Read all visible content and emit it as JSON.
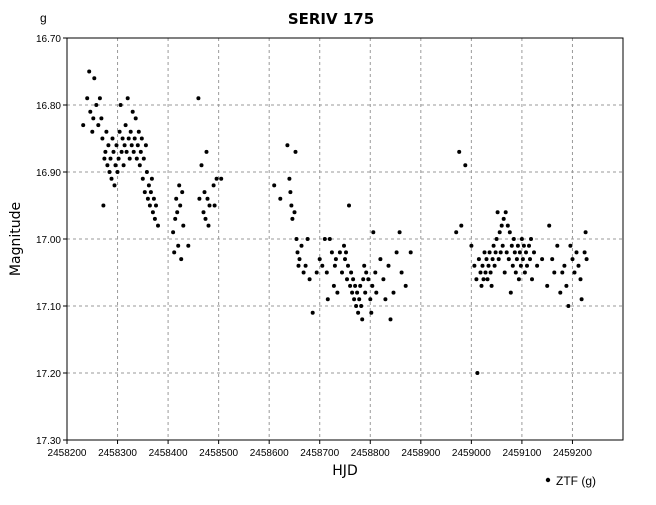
{
  "chart_data": {
    "type": "scatter",
    "title": "SERIV 175",
    "band": "g",
    "xlabel": "HJD",
    "ylabel": "Magnitude",
    "xlim": [
      2458200,
      2459300
    ],
    "ylim": [
      16.7,
      17.3
    ],
    "y_inverted": true,
    "grid": true,
    "legend_position": "bottom-right",
    "x_ticks": [
      2458200,
      2458300,
      2458400,
      2458500,
      2458600,
      2458700,
      2458800,
      2458900,
      2459000,
      2459100,
      2459200
    ],
    "y_ticks": [
      16.7,
      16.8,
      16.9,
      17.0,
      17.1,
      17.2,
      17.3
    ],
    "x_tick_labels": [
      "2458200",
      "2458300",
      "2458400",
      "2458500",
      "2458600",
      "2458700",
      "2458800",
      "2458900",
      "2459000",
      "2459100",
      "2459200"
    ],
    "y_tick_labels": [
      "16.70",
      "16.80",
      "16.90",
      "17.00",
      "17.10",
      "17.20",
      "17.30"
    ],
    "series": [
      {
        "name": "ZTF (g)",
        "color": "#000000",
        "points": [
          [
            2458232,
            16.83
          ],
          [
            2458240,
            16.79
          ],
          [
            2458244,
            16.75
          ],
          [
            2458246,
            16.81
          ],
          [
            2458250,
            16.84
          ],
          [
            2458252,
            16.82
          ],
          [
            2458254,
            16.76
          ],
          [
            2458258,
            16.8
          ],
          [
            2458262,
            16.83
          ],
          [
            2458265,
            16.79
          ],
          [
            2458268,
            16.82
          ],
          [
            2458270,
            16.85
          ],
          [
            2458272,
            16.95
          ],
          [
            2458274,
            16.88
          ],
          [
            2458276,
            16.87
          ],
          [
            2458278,
            16.84
          ],
          [
            2458280,
            16.89
          ],
          [
            2458282,
            16.86
          ],
          [
            2458284,
            16.9
          ],
          [
            2458286,
            16.88
          ],
          [
            2458288,
            16.91
          ],
          [
            2458290,
            16.85
          ],
          [
            2458292,
            16.87
          ],
          [
            2458294,
            16.92
          ],
          [
            2458296,
            16.89
          ],
          [
            2458298,
            16.86
          ],
          [
            2458300,
            16.9
          ],
          [
            2458302,
            16.88
          ],
          [
            2458304,
            16.84
          ],
          [
            2458306,
            16.8
          ],
          [
            2458308,
            16.87
          ],
          [
            2458310,
            16.85
          ],
          [
            2458312,
            16.89
          ],
          [
            2458314,
            16.86
          ],
          [
            2458316,
            16.83
          ],
          [
            2458318,
            16.87
          ],
          [
            2458320,
            16.79
          ],
          [
            2458322,
            16.85
          ],
          [
            2458324,
            16.88
          ],
          [
            2458326,
            16.84
          ],
          [
            2458328,
            16.86
          ],
          [
            2458330,
            16.81
          ],
          [
            2458332,
            16.87
          ],
          [
            2458334,
            16.85
          ],
          [
            2458336,
            16.82
          ],
          [
            2458338,
            16.88
          ],
          [
            2458340,
            16.86
          ],
          [
            2458342,
            16.84
          ],
          [
            2458344,
            16.89
          ],
          [
            2458346,
            16.87
          ],
          [
            2458348,
            16.85
          ],
          [
            2458350,
            16.91
          ],
          [
            2458352,
            16.88
          ],
          [
            2458354,
            16.93
          ],
          [
            2458356,
            16.86
          ],
          [
            2458358,
            16.9
          ],
          [
            2458360,
            16.94
          ],
          [
            2458362,
            16.92
          ],
          [
            2458364,
            16.95
          ],
          [
            2458366,
            16.93
          ],
          [
            2458368,
            16.91
          ],
          [
            2458370,
            16.96
          ],
          [
            2458372,
            16.94
          ],
          [
            2458374,
            16.97
          ],
          [
            2458376,
            16.95
          ],
          [
            2458380,
            16.98
          ],
          [
            2458410,
            16.99
          ],
          [
            2458412,
            17.02
          ],
          [
            2458414,
            16.97
          ],
          [
            2458416,
            16.94
          ],
          [
            2458418,
            16.96
          ],
          [
            2458420,
            17.01
          ],
          [
            2458422,
            16.92
          ],
          [
            2458424,
            16.95
          ],
          [
            2458426,
            17.03
          ],
          [
            2458428,
            16.93
          ],
          [
            2458430,
            16.98
          ],
          [
            2458440,
            17.01
          ],
          [
            2458460,
            16.79
          ],
          [
            2458462,
            16.94
          ],
          [
            2458466,
            16.89
          ],
          [
            2458470,
            16.96
          ],
          [
            2458472,
            16.93
          ],
          [
            2458474,
            16.97
          ],
          [
            2458476,
            16.87
          ],
          [
            2458478,
            16.94
          ],
          [
            2458480,
            16.98
          ],
          [
            2458482,
            16.95
          ],
          [
            2458490,
            16.92
          ],
          [
            2458492,
            16.95
          ],
          [
            2458496,
            16.91
          ],
          [
            2458505,
            16.91
          ],
          [
            2458610,
            16.92
          ],
          [
            2458622,
            16.94
          ],
          [
            2458636,
            16.86
          ],
          [
            2458640,
            16.91
          ],
          [
            2458642,
            16.93
          ],
          [
            2458644,
            16.95
          ],
          [
            2458646,
            16.97
          ],
          [
            2458650,
            16.96
          ],
          [
            2458652,
            16.87
          ],
          [
            2458654,
            17.0
          ],
          [
            2458656,
            17.02
          ],
          [
            2458658,
            17.04
          ],
          [
            2458660,
            17.03
          ],
          [
            2458664,
            17.01
          ],
          [
            2458668,
            17.05
          ],
          [
            2458672,
            17.04
          ],
          [
            2458676,
            17.0
          ],
          [
            2458680,
            17.06
          ],
          [
            2458686,
            17.11
          ],
          [
            2458694,
            17.05
          ],
          [
            2458700,
            17.03
          ],
          [
            2458705,
            17.04
          ],
          [
            2458710,
            17.0
          ],
          [
            2458714,
            17.05
          ],
          [
            2458716,
            17.09
          ],
          [
            2458720,
            17.0
          ],
          [
            2458724,
            17.02
          ],
          [
            2458728,
            17.07
          ],
          [
            2458730,
            17.04
          ],
          [
            2458732,
            17.03
          ],
          [
            2458735,
            17.08
          ],
          [
            2458740,
            17.02
          ],
          [
            2458744,
            17.05
          ],
          [
            2458748,
            17.01
          ],
          [
            2458750,
            17.03
          ],
          [
            2458752,
            17.02
          ],
          [
            2458754,
            17.06
          ],
          [
            2458756,
            17.04
          ],
          [
            2458758,
            16.95
          ],
          [
            2458760,
            17.07
          ],
          [
            2458762,
            17.05
          ],
          [
            2458764,
            17.08
          ],
          [
            2458766,
            17.06
          ],
          [
            2458768,
            17.09
          ],
          [
            2458770,
            17.07
          ],
          [
            2458772,
            17.1
          ],
          [
            2458774,
            17.08
          ],
          [
            2458776,
            17.11
          ],
          [
            2458778,
            17.09
          ],
          [
            2458780,
            17.07
          ],
          [
            2458782,
            17.1
          ],
          [
            2458784,
            17.12
          ],
          [
            2458786,
            17.06
          ],
          [
            2458788,
            17.04
          ],
          [
            2458790,
            17.08
          ],
          [
            2458792,
            17.05
          ],
          [
            2458796,
            17.06
          ],
          [
            2458800,
            17.09
          ],
          [
            2458802,
            17.11
          ],
          [
            2458804,
            17.07
          ],
          [
            2458806,
            16.99
          ],
          [
            2458810,
            17.05
          ],
          [
            2458812,
            17.08
          ],
          [
            2458820,
            17.03
          ],
          [
            2458826,
            17.06
          ],
          [
            2458830,
            17.09
          ],
          [
            2458836,
            17.04
          ],
          [
            2458840,
            17.12
          ],
          [
            2458846,
            17.08
          ],
          [
            2458852,
            17.02
          ],
          [
            2458858,
            16.99
          ],
          [
            2458862,
            17.05
          ],
          [
            2458870,
            17.07
          ],
          [
            2458880,
            17.02
          ],
          [
            2458970,
            16.99
          ],
          [
            2458976,
            16.87
          ],
          [
            2458980,
            16.98
          ],
          [
            2458988,
            16.89
          ],
          [
            2459000,
            17.01
          ],
          [
            2459006,
            17.04
          ],
          [
            2459010,
            17.06
          ],
          [
            2459012,
            17.2
          ],
          [
            2459015,
            17.03
          ],
          [
            2459018,
            17.05
          ],
          [
            2459020,
            17.07
          ],
          [
            2459022,
            17.04
          ],
          [
            2459024,
            17.06
          ],
          [
            2459026,
            17.02
          ],
          [
            2459028,
            17.05
          ],
          [
            2459030,
            17.03
          ],
          [
            2459032,
            17.06
          ],
          [
            2459034,
            17.04
          ],
          [
            2459036,
            17.02
          ],
          [
            2459038,
            17.05
          ],
          [
            2459040,
            17.07
          ],
          [
            2459042,
            17.03
          ],
          [
            2459044,
            17.01
          ],
          [
            2459046,
            17.04
          ],
          [
            2459048,
            17.02
          ],
          [
            2459050,
            17.0
          ],
          [
            2459052,
            16.96
          ],
          [
            2459054,
            17.03
          ],
          [
            2459056,
            16.99
          ],
          [
            2459058,
            17.02
          ],
          [
            2459060,
            16.98
          ],
          [
            2459062,
            17.01
          ],
          [
            2459064,
            16.97
          ],
          [
            2459066,
            17.05
          ],
          [
            2459068,
            16.96
          ],
          [
            2459070,
            17.02
          ],
          [
            2459072,
            16.98
          ],
          [
            2459074,
            17.03
          ],
          [
            2459076,
            16.99
          ],
          [
            2459078,
            17.08
          ],
          [
            2459080,
            17.01
          ],
          [
            2459082,
            17.04
          ],
          [
            2459084,
            17.0
          ],
          [
            2459086,
            17.02
          ],
          [
            2459088,
            17.05
          ],
          [
            2459090,
            17.03
          ],
          [
            2459092,
            17.01
          ],
          [
            2459094,
            17.06
          ],
          [
            2459096,
            17.02
          ],
          [
            2459098,
            17.04
          ],
          [
            2459100,
            17.0
          ],
          [
            2459102,
            17.03
          ],
          [
            2459104,
            17.01
          ],
          [
            2459106,
            17.05
          ],
          [
            2459108,
            17.02
          ],
          [
            2459110,
            17.04
          ],
          [
            2459114,
            17.01
          ],
          [
            2459116,
            17.03
          ],
          [
            2459118,
            17.0
          ],
          [
            2459120,
            17.06
          ],
          [
            2459124,
            17.02
          ],
          [
            2459130,
            17.04
          ],
          [
            2459140,
            17.03
          ],
          [
            2459150,
            17.07
          ],
          [
            2459154,
            16.98
          ],
          [
            2459160,
            17.03
          ],
          [
            2459164,
            17.05
          ],
          [
            2459170,
            17.01
          ],
          [
            2459176,
            17.08
          ],
          [
            2459180,
            17.05
          ],
          [
            2459184,
            17.04
          ],
          [
            2459188,
            17.07
          ],
          [
            2459192,
            17.1
          ],
          [
            2459196,
            17.01
          ],
          [
            2459200,
            17.03
          ],
          [
            2459204,
            17.05
          ],
          [
            2459208,
            17.02
          ],
          [
            2459212,
            17.04
          ],
          [
            2459216,
            17.06
          ],
          [
            2459218,
            17.09
          ],
          [
            2459224,
            17.02
          ],
          [
            2459226,
            16.99
          ],
          [
            2459228,
            17.03
          ]
        ]
      }
    ]
  }
}
